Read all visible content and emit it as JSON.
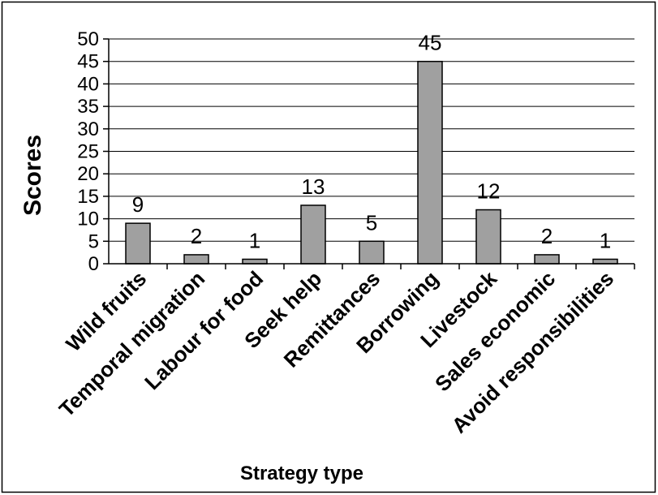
{
  "chart_data": {
    "type": "bar",
    "title": "",
    "xlabel": "Strategy type",
    "ylabel": "Scores",
    "categories": [
      "Wild fruits",
      "Temporal migration",
      "Labour for food",
      "Seek help",
      "Remittances",
      "Borrowing",
      "Livestock",
      "Sales economic",
      "Avoid responsibilities"
    ],
    "values": [
      9,
      2,
      1,
      13,
      5,
      45,
      12,
      2,
      1
    ],
    "data_labels": [
      "9",
      "2",
      "1",
      "13",
      "5",
      "45",
      "12",
      "2",
      "1"
    ],
    "ylim": [
      0,
      50
    ],
    "yticks": [
      "0",
      "5",
      "10",
      "15",
      "20",
      "25",
      "30",
      "35",
      "40",
      "45",
      "50"
    ],
    "grid": true,
    "legend": "none",
    "bar_color": "#a0a0a0",
    "bar_stroke": "#000000"
  }
}
